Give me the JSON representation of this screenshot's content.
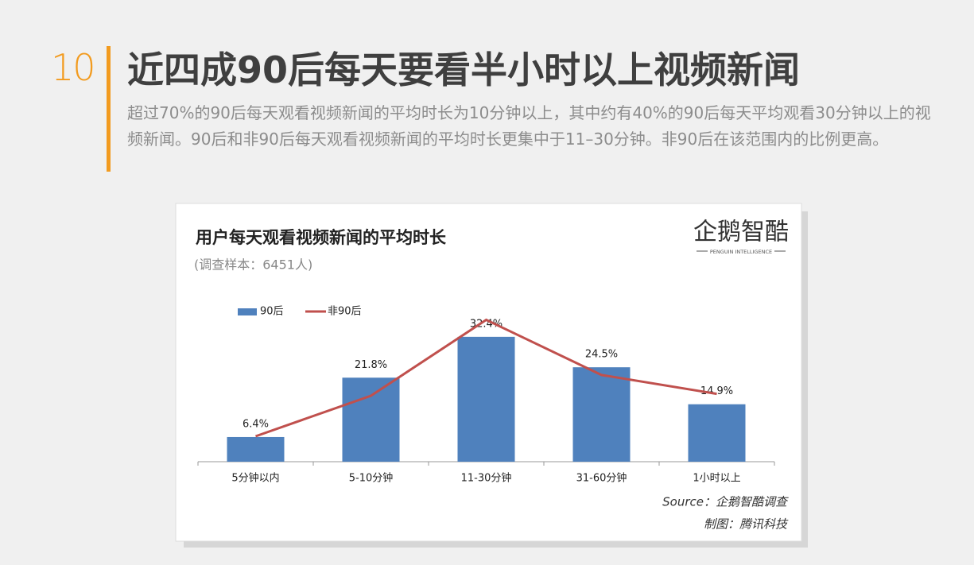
{
  "header": {
    "number": "10",
    "title": "近四成90后每天要看半小时以上视频新闻",
    "description": "超过70%的90后每天观看视频新闻的平均时长为10分钟以上，其中约有40%的90后每天平均观看30分钟以上的视频新闻。90后和非90后每天观看视频新闻的平均时长更集中于11–30分钟。非90后在该范围内的比例更高。"
  },
  "chart_data": {
    "type": "bar_line",
    "title": "用户每天观看视频新闻的平均时长",
    "subtitle": "(调查样本：6451人)",
    "logo": {
      "name": "企鹅智酷",
      "tagline": "PENGUIN INTELLIGENCE"
    },
    "categories": [
      "5分钟以内",
      "5-10分钟",
      "11-30分钟",
      "31-60分钟",
      "1小时以上"
    ],
    "series": [
      {
        "name": "90后",
        "type": "bar",
        "color": "#4f81bd",
        "values": [
          6.4,
          21.8,
          32.4,
          24.5,
          14.9
        ],
        "value_labels": [
          "6.4%",
          "21.8%",
          "32.4%",
          "24.5%",
          "14.9%"
        ]
      },
      {
        "name": "非90后",
        "type": "line",
        "color": "#c0504d",
        "values": [
          6.6,
          17.1,
          36.8,
          22.5,
          17.6
        ]
      }
    ],
    "ylim": [
      0,
      40
    ],
    "source": "Source：企鹅智酷调查",
    "credit": "制图：腾讯科技"
  }
}
